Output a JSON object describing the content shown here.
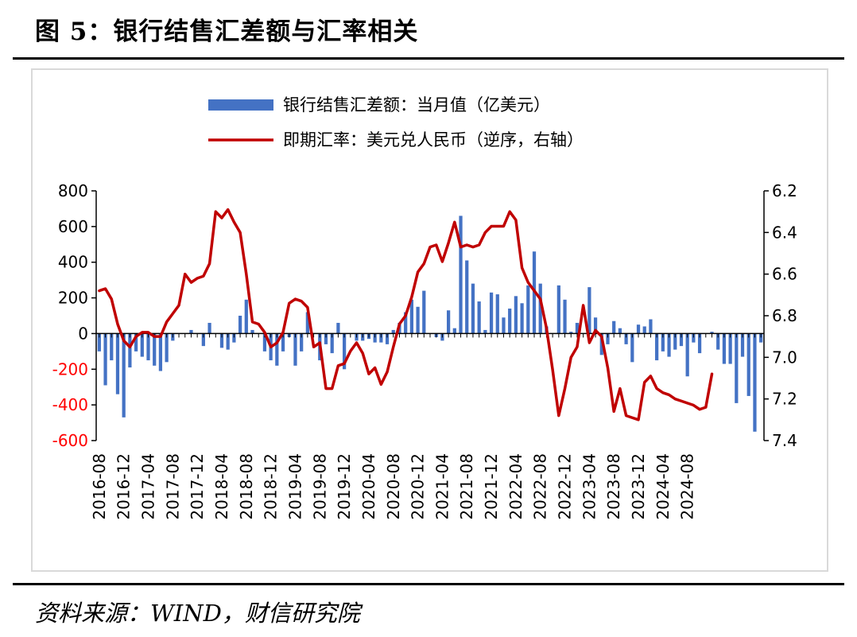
{
  "figure_title": "图 5：银行结售汇差额与汇率相关",
  "source": "资料来源：WIND，财信研究院",
  "colors": {
    "bar": "#4472c4",
    "line": "#c00000",
    "negative_tick": "#ff0000",
    "axis": "#000000"
  },
  "chart_data": {
    "type": "bar+line",
    "title": "",
    "x_tick_labels": [
      "2016-08",
      "2016-12",
      "2017-04",
      "2017-08",
      "2017-12",
      "2018-04",
      "2018-08",
      "2018-12",
      "2019-04",
      "2019-08",
      "2019-12",
      "2020-04",
      "2020-08",
      "2020-12",
      "2021-04",
      "2021-08",
      "2021-12",
      "2022-04",
      "2022-08",
      "2022-12",
      "2023-04",
      "2023-08",
      "2023-12",
      "2024-04",
      "2024-08"
    ],
    "left_axis": {
      "min": -600,
      "max": 800,
      "ticks": [
        800,
        600,
        400,
        200,
        0,
        -200,
        -400,
        -600
      ],
      "tick_labels": [
        "800",
        "600",
        "400",
        "200",
        "0",
        "-200",
        "-400",
        "-600"
      ]
    },
    "right_axis": {
      "min": 6.2,
      "max": 7.4,
      "inverted": true,
      "ticks": [
        6.2,
        6.4,
        6.6,
        6.8,
        7.0,
        7.2,
        7.4
      ],
      "tick_labels": [
        "6.2",
        "6.4",
        "6.6",
        "6.8",
        "7.0",
        "7.2",
        "7.4"
      ]
    },
    "series": [
      {
        "name": "银行结售汇差额：当月值（亿美元）",
        "type": "bar",
        "axis": "left",
        "values": [
          -100,
          -290,
          -150,
          -340,
          -470,
          -190,
          -100,
          -130,
          -150,
          -180,
          -210,
          -160,
          -40,
          0,
          0,
          20,
          0,
          -70,
          60,
          0,
          -80,
          -90,
          -50,
          100,
          190,
          20,
          0,
          -100,
          -150,
          -180,
          -100,
          -20,
          -180,
          -100,
          120,
          0,
          -150,
          -60,
          -110,
          60,
          -200,
          0,
          -40,
          -40,
          -30,
          -50,
          -50,
          -60,
          20,
          60,
          120,
          190,
          150,
          240,
          0,
          -20,
          -40,
          130,
          30,
          660,
          410,
          280,
          180,
          20,
          230,
          220,
          90,
          140,
          210,
          170,
          270,
          460,
          280,
          40,
          0,
          270,
          190,
          10,
          60,
          0,
          260,
          90,
          -120,
          -60,
          70,
          30,
          -60,
          -160,
          50,
          40,
          80,
          -150,
          -100,
          -130,
          -90,
          -70,
          -240,
          -50,
          -110,
          0,
          10,
          -90,
          -170,
          -170,
          -390,
          -130,
          -350,
          -550,
          -50
        ]
      },
      {
        "name": "即期汇率：美元兑人民币（逆序，右轴）",
        "type": "line",
        "axis": "right",
        "values": [
          6.68,
          6.67,
          6.72,
          6.84,
          6.92,
          6.95,
          6.9,
          6.88,
          6.88,
          6.9,
          6.9,
          6.83,
          6.79,
          6.75,
          6.6,
          6.64,
          6.62,
          6.61,
          6.55,
          6.3,
          6.33,
          6.29,
          6.35,
          6.4,
          6.6,
          6.83,
          6.84,
          6.88,
          6.95,
          6.93,
          6.88,
          6.74,
          6.72,
          6.73,
          6.76,
          6.95,
          6.93,
          7.15,
          7.15,
          7.04,
          7.03,
          6.97,
          6.93,
          6.98,
          7.08,
          7.05,
          7.13,
          7.07,
          6.95,
          6.84,
          6.8,
          6.71,
          6.59,
          6.55,
          6.47,
          6.46,
          6.54,
          6.45,
          6.35,
          6.47,
          6.46,
          6.47,
          6.46,
          6.4,
          6.37,
          6.37,
          6.37,
          6.3,
          6.34,
          6.57,
          6.64,
          6.68,
          6.72,
          6.86,
          7.06,
          7.28,
          7.15,
          7.0,
          6.95,
          6.75,
          6.93,
          6.87,
          6.9,
          7.05,
          7.26,
          7.15,
          7.28,
          7.29,
          7.3,
          7.12,
          7.09,
          7.15,
          7.17,
          7.18,
          7.2,
          7.21,
          7.22,
          7.23,
          7.25,
          7.24,
          7.08
        ]
      }
    ],
    "legend": [
      {
        "label": "银行结售汇差额：当月值（亿美元）",
        "kind": "bar"
      },
      {
        "label": "即期汇率：美元兑人民币（逆序，右轴）",
        "kind": "line"
      }
    ],
    "legend_position": "top-center",
    "grid": false
  }
}
